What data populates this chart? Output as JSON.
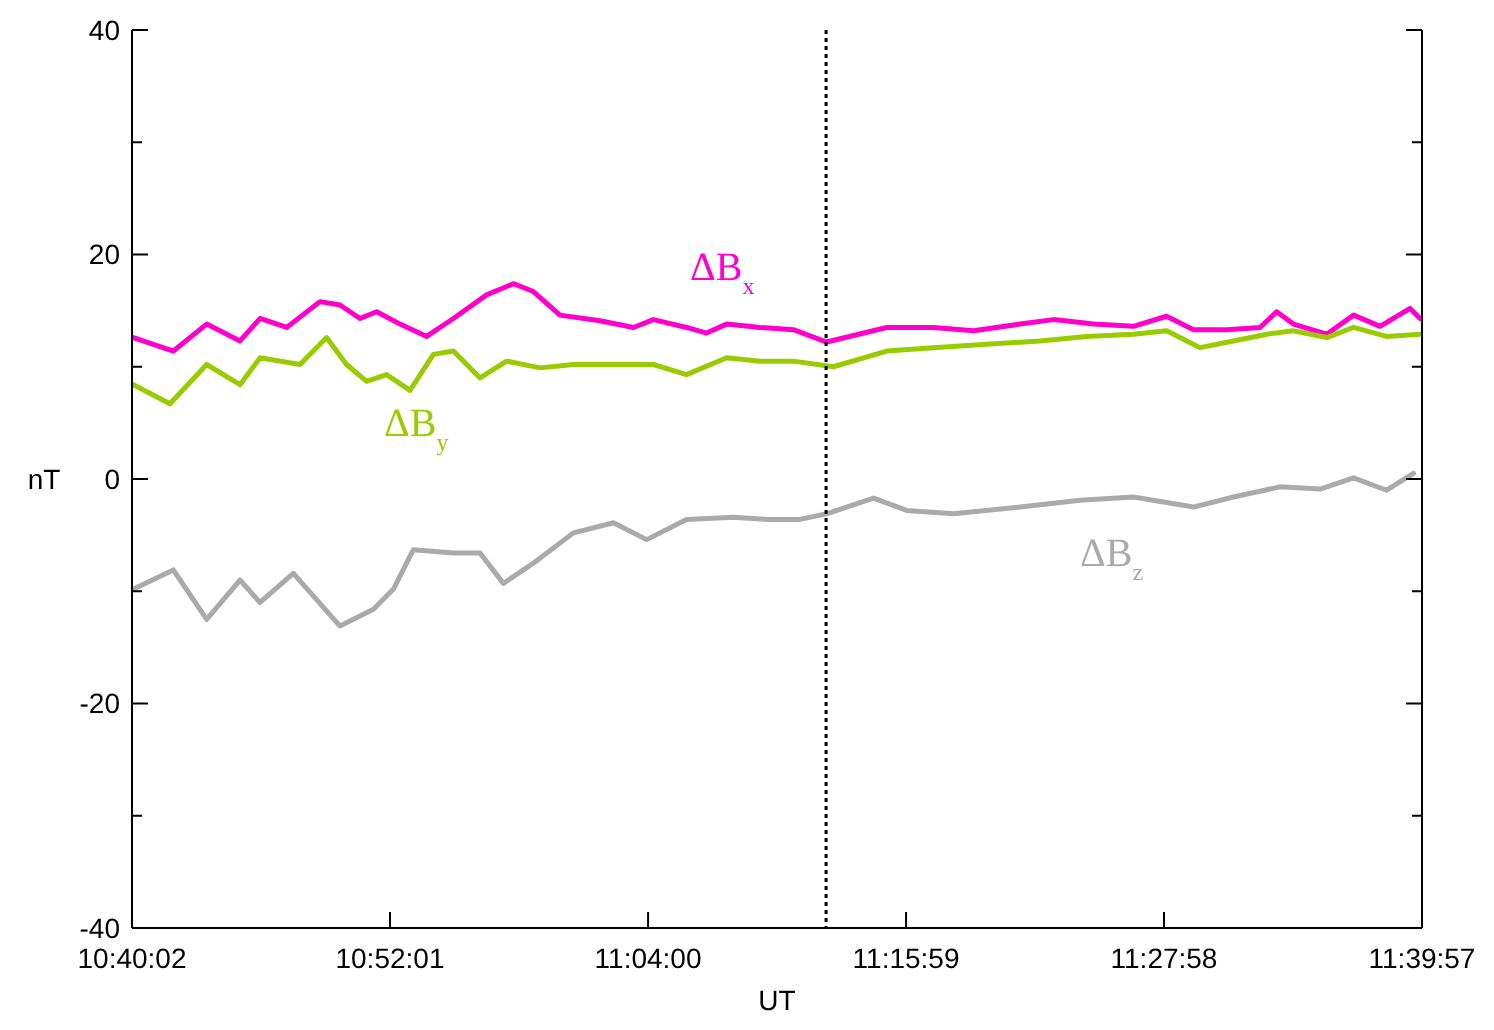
{
  "chart_data": {
    "type": "line",
    "xlabel": "UT",
    "ylabel": "nT",
    "xlim": [
      10.6672,
      11.6658
    ],
    "xticks": [
      {
        "value": 10.6672,
        "label": "10:40:02"
      },
      {
        "value": 10.8669,
        "label": "10:52:01"
      },
      {
        "value": 11.0667,
        "label": "11:04:00"
      },
      {
        "value": 11.2664,
        "label": "11:15:59"
      },
      {
        "value": 11.4661,
        "label": "11:27:58"
      },
      {
        "value": 11.6658,
        "label": "11:39:57"
      }
    ],
    "ylim": [
      -40,
      40
    ],
    "yticks": [
      -40,
      {
        "value": -30,
        "label": null
      },
      -20,
      {
        "value": -10,
        "label": null
      },
      0,
      {
        "value": 10,
        "label": null
      },
      20,
      {
        "value": 30,
        "label": null
      },
      40
    ],
    "grid": false,
    "marker": "none",
    "line_style": "solid",
    "ref_lines": [
      {
        "axis": "x",
        "value": 11.2045,
        "color": "#000000",
        "line_style": "dotted"
      }
    ],
    "series": [
      {
        "name": "ΔB$_{x}$",
        "color": "#ff00cc",
        "x": [
          10.6683,
          10.6992,
          10.725,
          10.7508,
          10.7663,
          10.7869,
          10.8127,
          10.8282,
          10.8437,
          10.8566,
          10.8747,
          10.8953,
          10.916,
          10.9417,
          10.9625,
          10.9779,
          10.9985,
          11.0295,
          11.0554,
          11.0708,
          11.0965,
          11.112,
          11.1275,
          11.1534,
          11.1792,
          11.2049,
          11.2514,
          11.2876,
          11.3186,
          11.3546,
          11.3805,
          11.4115,
          11.4424,
          11.4681,
          11.4889,
          11.5146,
          11.5404,
          11.5533,
          11.5663,
          11.592,
          11.6128,
          11.6333,
          11.6566,
          11.6643
        ],
        "values": [
          12.6,
          11.4,
          13.8,
          12.3,
          14.3,
          13.5,
          15.8,
          15.5,
          14.3,
          14.9,
          13.8,
          12.7,
          14.3,
          16.4,
          17.4,
          16.7,
          14.6,
          14.1,
          13.5,
          14.2,
          13.5,
          13.0,
          13.8,
          13.5,
          13.3,
          12.2,
          13.5,
          13.5,
          13.2,
          13.8,
          14.2,
          13.8,
          13.6,
          14.5,
          13.3,
          13.3,
          13.5,
          14.9,
          13.8,
          12.9,
          14.6,
          13.6,
          15.2,
          14.3
        ]
      },
      {
        "name": "ΔB$_{y}$",
        "color": "#99cc00",
        "x": [
          10.6683,
          10.6966,
          10.725,
          10.7508,
          10.7663,
          10.7973,
          10.8178,
          10.8333,
          10.8488,
          10.8643,
          10.8824,
          10.9005,
          10.916,
          10.9366,
          10.9572,
          10.9831,
          11.0089,
          11.0346,
          11.0708,
          11.0965,
          11.1275,
          11.1534,
          11.1792,
          11.2102,
          11.2514,
          11.2876,
          11.3288,
          11.3701,
          11.4062,
          11.4424,
          11.4681,
          11.494,
          11.5198,
          11.5456,
          11.5663,
          11.592,
          11.6128,
          11.6384,
          11.6643
        ],
        "values": [
          8.4,
          6.7,
          10.2,
          8.4,
          10.8,
          10.2,
          12.6,
          10.2,
          8.7,
          9.3,
          7.9,
          11.1,
          11.4,
          9.0,
          10.5,
          9.9,
          10.2,
          10.2,
          10.2,
          9.3,
          10.8,
          10.5,
          10.5,
          10.0,
          11.4,
          11.7,
          12.0,
          12.3,
          12.7,
          12.9,
          13.2,
          11.7,
          12.3,
          12.9,
          13.2,
          12.6,
          13.5,
          12.7,
          12.9
        ]
      },
      {
        "name": "ΔB$_{z}$",
        "color": "#aaaaaa",
        "x": [
          10.6683,
          10.6992,
          10.725,
          10.7508,
          10.7663,
          10.7921,
          10.8282,
          10.8541,
          10.8696,
          10.885,
          10.916,
          10.9366,
          10.9547,
          10.9779,
          11.0089,
          11.0399,
          11.0656,
          11.0965,
          11.1328,
          11.1585,
          11.1843,
          11.2049,
          11.2412,
          11.2669,
          11.3031,
          11.3546,
          11.4011,
          11.4424,
          11.4889,
          11.5198,
          11.5559,
          11.5869,
          11.6128,
          11.6384,
          11.6592
        ],
        "values": [
          -9.8,
          -8.1,
          -12.5,
          -9.0,
          -11.0,
          -8.4,
          -13.1,
          -11.6,
          -9.8,
          -6.3,
          -6.6,
          -6.6,
          -9.3,
          -7.5,
          -4.8,
          -3.9,
          -5.4,
          -3.6,
          -3.4,
          -3.6,
          -3.6,
          -3.1,
          -1.7,
          -2.8,
          -3.1,
          -2.5,
          -1.9,
          -1.6,
          -2.5,
          -1.6,
          -0.7,
          -0.9,
          0.1,
          -1.0,
          0.5
        ]
      }
    ]
  }
}
